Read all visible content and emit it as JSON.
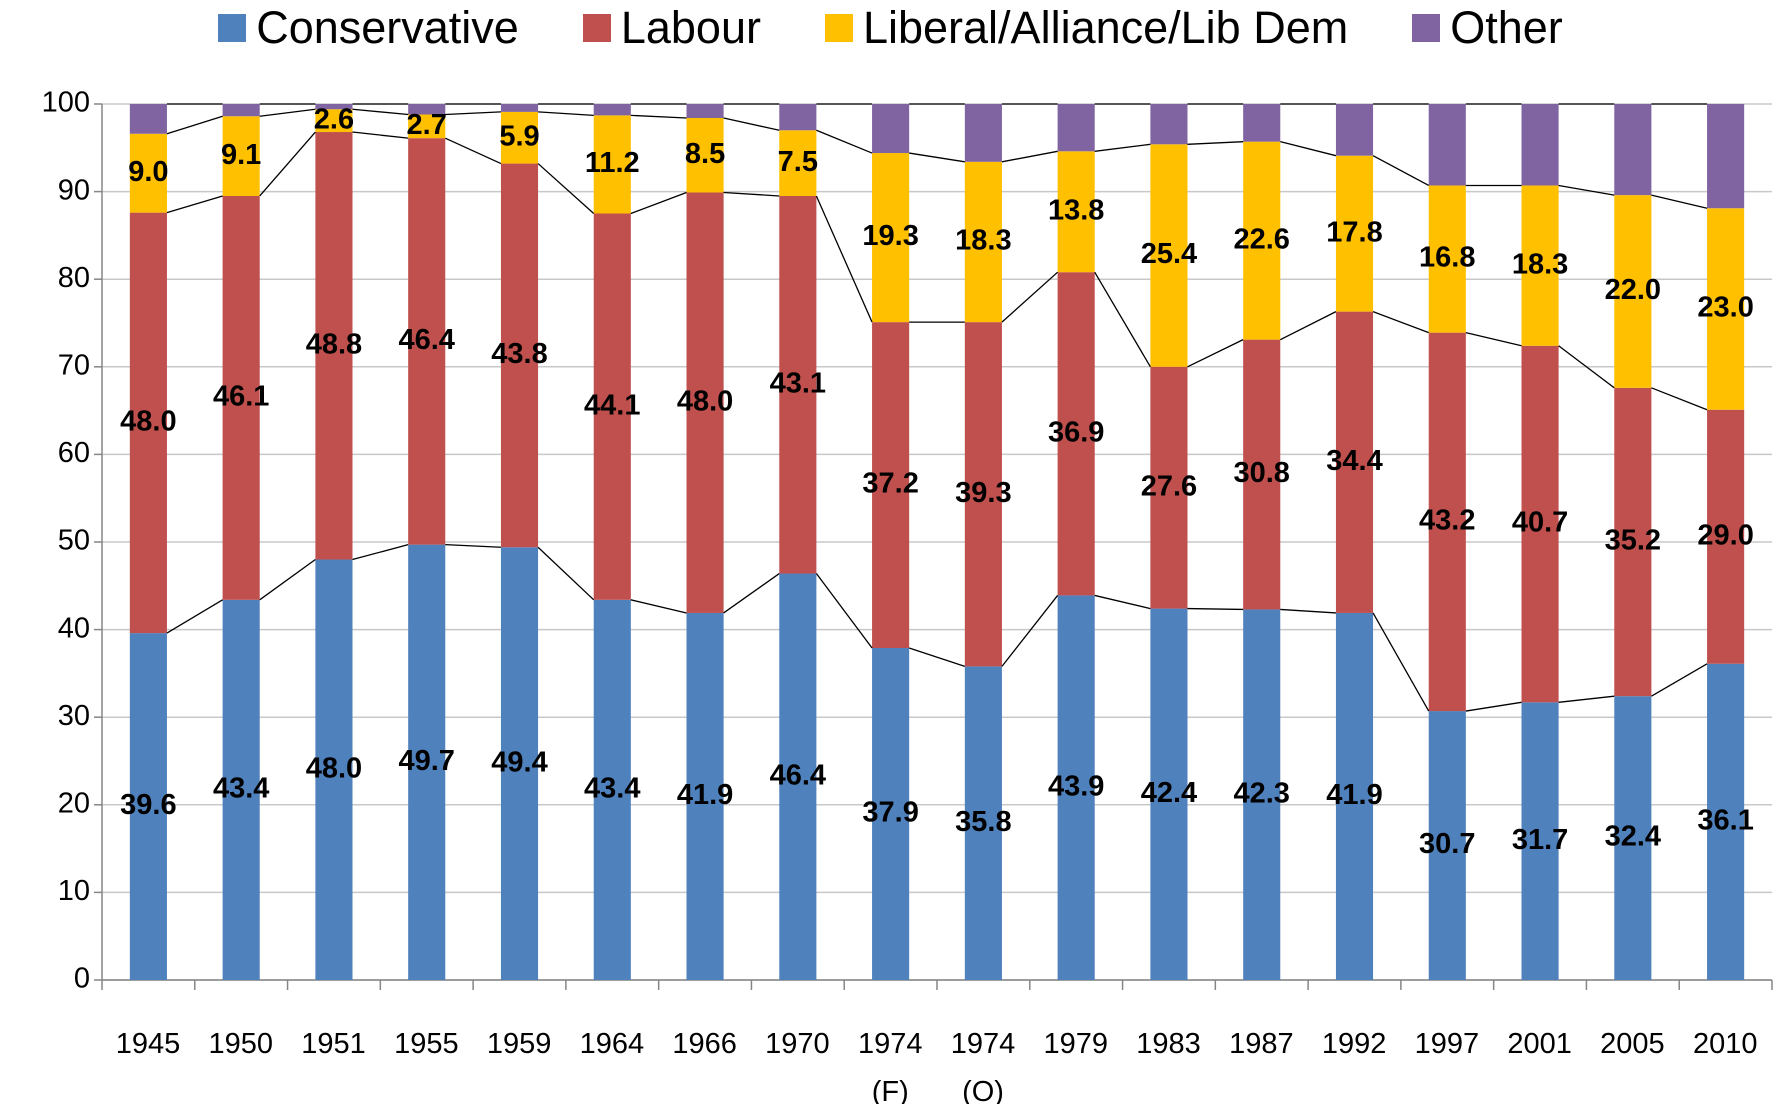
{
  "chart_data": {
    "type": "stacked_bar",
    "categories": [
      "1945",
      "1950",
      "1951",
      "1955",
      "1959",
      "1964",
      "1966",
      "1970",
      "1974\n(F)",
      "1974\n(O)",
      "1979",
      "1983",
      "1987",
      "1992",
      "1997",
      "2001",
      "2005",
      "2010"
    ],
    "series": [
      {
        "name": "Conservative",
        "color": "#4f81bd",
        "values": [
          39.6,
          43.4,
          48.0,
          49.7,
          49.4,
          43.4,
          41.9,
          46.4,
          37.9,
          35.8,
          43.9,
          42.4,
          42.3,
          41.9,
          30.7,
          31.7,
          32.4,
          36.1
        ],
        "value_labels": [
          "39.6",
          "43.4",
          "48.0",
          "49.7",
          "49.4",
          "43.4",
          "41.9",
          "46.4",
          "37.9",
          "35.8",
          "43.9",
          "42.4",
          "42.3",
          "41.9",
          "30.7",
          "31.7",
          "32.4",
          "36.1"
        ]
      },
      {
        "name": "Labour",
        "color": "#c0504d",
        "values": [
          48.0,
          46.1,
          48.8,
          46.4,
          43.8,
          44.1,
          48.0,
          43.1,
          37.2,
          39.3,
          36.9,
          27.6,
          30.8,
          34.4,
          43.2,
          40.7,
          35.2,
          29.0
        ],
        "value_labels": [
          "48.0",
          "46.1",
          "48.8",
          "46.4",
          "43.8",
          "44.1",
          "48.0",
          "43.1",
          "37.2",
          "39.3",
          "36.9",
          "27.6",
          "30.8",
          "34.4",
          "43.2",
          "40.7",
          "35.2",
          "29.0"
        ]
      },
      {
        "name": "Liberal/Alliance/Lib Dem",
        "color": "#ffc000",
        "values": [
          9.0,
          9.1,
          2.6,
          2.7,
          5.9,
          11.2,
          8.5,
          7.5,
          19.3,
          18.3,
          13.8,
          25.4,
          22.6,
          17.8,
          16.8,
          18.3,
          22.0,
          23.0
        ],
        "value_labels": [
          "9.0",
          "9.1",
          "2.6",
          "2.7",
          "5.9",
          "11.2",
          "8.5",
          "7.5",
          "19.3",
          "18.3",
          "13.8",
          "25.4",
          "22.6",
          "17.8",
          "16.8",
          "18.3",
          "22.0",
          "23.0"
        ]
      },
      {
        "name": "Other",
        "color": "#8064a2",
        "values": [
          3.4,
          1.4,
          0.6,
          1.2,
          0.9,
          1.3,
          1.6,
          3.0,
          5.6,
          6.6,
          5.4,
          4.6,
          4.3,
          5.9,
          9.3,
          9.3,
          10.4,
          11.9
        ]
      }
    ],
    "ylim": [
      0,
      100
    ],
    "yticks": [
      0,
      10,
      20,
      30,
      40,
      50,
      60,
      70,
      80,
      90,
      100
    ],
    "grid": true,
    "legend": "top"
  }
}
